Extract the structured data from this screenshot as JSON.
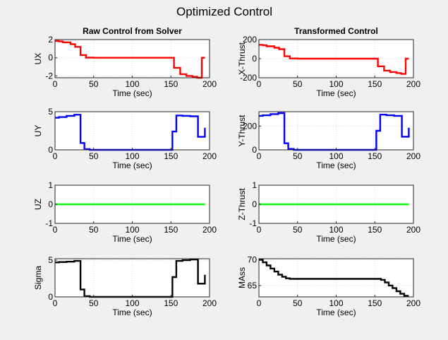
{
  "figure": {
    "title": "Optimized Control",
    "background": "#f0f0f0"
  },
  "chart_data": [
    {
      "type": "line",
      "step": true,
      "title": "Raw Control from Solver",
      "xlabel": "Time (sec)",
      "ylabel": "UX",
      "xlim": [
        0,
        200
      ],
      "ylim": [
        -2.2,
        2
      ],
      "xticks": [
        0,
        50,
        100,
        150,
        200
      ],
      "yticks": [
        -2,
        0,
        2
      ],
      "grid": true,
      "series": [
        {
          "color": "#ff0000",
          "x": [
            0,
            5,
            10,
            20,
            26,
            33,
            40,
            50,
            100,
            150,
            154,
            162,
            170,
            178,
            184,
            190,
            194
          ],
          "y": [
            1.85,
            1.8,
            1.7,
            1.5,
            1.2,
            0.3,
            0.02,
            0,
            0,
            0,
            -1.1,
            -1.8,
            -2.0,
            -2.1,
            -2.2,
            0,
            0
          ]
        }
      ]
    },
    {
      "type": "line",
      "step": true,
      "title": "Transformed Control",
      "xlabel": "Time (sec)",
      "ylabel": "X-Thrust",
      "xlim": [
        0,
        200
      ],
      "ylim": [
        -200,
        200
      ],
      "xticks": [
        0,
        50,
        100,
        150,
        200
      ],
      "yticks": [
        -200,
        0,
        200
      ],
      "grid": true,
      "series": [
        {
          "color": "#ff0000",
          "x": [
            0,
            5,
            10,
            20,
            26,
            33,
            40,
            50,
            100,
            150,
            154,
            162,
            170,
            178,
            184,
            190,
            194
          ],
          "y": [
            145,
            140,
            130,
            115,
            100,
            25,
            2,
            0,
            0,
            0,
            -80,
            -125,
            -140,
            -150,
            -160,
            0,
            0
          ]
        }
      ]
    },
    {
      "type": "line",
      "step": true,
      "title": "",
      "xlabel": "Time (sec)",
      "ylabel": "UY",
      "xlim": [
        0,
        200
      ],
      "ylim": [
        0,
        5
      ],
      "xticks": [
        0,
        50,
        100,
        150,
        200
      ],
      "yticks": [
        0,
        5
      ],
      "grid": true,
      "series": [
        {
          "color": "#0000ff",
          "x": [
            0,
            5,
            15,
            25,
            33,
            38,
            45,
            100,
            150,
            152,
            157,
            165,
            175,
            185,
            190,
            194
          ],
          "y": [
            4.2,
            4.3,
            4.45,
            4.6,
            0.9,
            0.1,
            0,
            0,
            0,
            2.4,
            4.5,
            4.45,
            4.4,
            1.7,
            1.7,
            2.9
          ]
        }
      ]
    },
    {
      "type": "line",
      "step": true,
      "title": "",
      "xlabel": "Time (sec)",
      "ylabel": "Y-Thrust",
      "xlim": [
        0,
        200
      ],
      "ylim": [
        0,
        320
      ],
      "xticks": [
        0,
        50,
        100,
        150,
        200
      ],
      "yticks": [
        0,
        200
      ],
      "grid": true,
      "series": [
        {
          "color": "#0000ff",
          "x": [
            0,
            5,
            15,
            25,
            33,
            38,
            45,
            100,
            150,
            152,
            157,
            165,
            175,
            185,
            190,
            194
          ],
          "y": [
            285,
            290,
            300,
            308,
            55,
            8,
            0,
            0,
            0,
            160,
            295,
            290,
            285,
            110,
            110,
            185
          ]
        }
      ]
    },
    {
      "type": "line",
      "step": true,
      "title": "",
      "xlabel": "Time (sec)",
      "ylabel": "UZ",
      "xlim": [
        0,
        200
      ],
      "ylim": [
        -1,
        1
      ],
      "xticks": [
        0,
        50,
        100,
        150,
        200
      ],
      "yticks": [
        -1,
        0,
        1
      ],
      "grid": true,
      "series": [
        {
          "color": "#00ff00",
          "x": [
            0,
            194
          ],
          "y": [
            0,
            0
          ]
        }
      ]
    },
    {
      "type": "line",
      "step": true,
      "title": "",
      "xlabel": "Time (sec)",
      "ylabel": "Z-Thrust",
      "xlim": [
        0,
        200
      ],
      "ylim": [
        -1,
        1
      ],
      "xticks": [
        0,
        50,
        100,
        150,
        200
      ],
      "yticks": [
        -1,
        0,
        1
      ],
      "grid": true,
      "series": [
        {
          "color": "#00ff00",
          "x": [
            0,
            194
          ],
          "y": [
            0,
            0
          ]
        }
      ]
    },
    {
      "type": "line",
      "step": true,
      "title": "",
      "xlabel": "Time (sec)",
      "ylabel": "Sigma",
      "xlim": [
        0,
        200
      ],
      "ylim": [
        0,
        5.2
      ],
      "xticks": [
        0,
        50,
        100,
        150,
        200
      ],
      "yticks": [
        0,
        5
      ],
      "grid": true,
      "series": [
        {
          "color": "#000000",
          "x": [
            0,
            5,
            15,
            25,
            33,
            38,
            45,
            100,
            150,
            152,
            157,
            165,
            175,
            185,
            190,
            194
          ],
          "y": [
            4.7,
            4.75,
            4.8,
            4.9,
            1.0,
            0.1,
            0,
            0,
            0,
            2.7,
            4.9,
            5.0,
            5.1,
            1.8,
            1.8,
            3.0
          ]
        }
      ]
    },
    {
      "type": "line",
      "step": true,
      "title": "",
      "xlabel": "Time (sec)",
      "ylabel": "MAss",
      "xlim": [
        0,
        200
      ],
      "ylim": [
        62.8,
        70.2
      ],
      "xticks": [
        0,
        50,
        100,
        150,
        200
      ],
      "yticks": [
        65,
        70
      ],
      "grid": true,
      "series": [
        {
          "color": "#000000",
          "x": [
            0,
            5,
            10,
            15,
            20,
            25,
            30,
            35,
            40,
            100,
            150,
            158,
            163,
            168,
            173,
            178,
            183,
            188,
            194
          ],
          "y": [
            70,
            69.5,
            68.9,
            68.3,
            67.7,
            67.1,
            66.7,
            66.4,
            66.3,
            66.3,
            66.3,
            66.1,
            65.6,
            65.0,
            64.5,
            63.9,
            63.4,
            63.0,
            63.0
          ]
        }
      ]
    }
  ]
}
